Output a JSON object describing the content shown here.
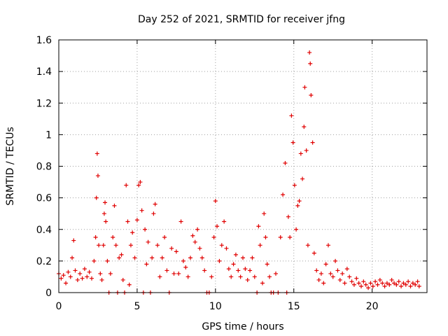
{
  "chart_data": {
    "type": "scatter",
    "title": "Day 252 of 2021, SRMTID for receiver jfng",
    "xlabel": "GPS time / hours",
    "ylabel": "SRMTID / TECUs",
    "xlim": [
      0,
      23.5
    ],
    "ylim": [
      0,
      1.6
    ],
    "xticks": [
      0,
      5,
      10,
      15,
      20
    ],
    "xtick_labels": [
      "0",
      "5",
      "10",
      "15",
      "20"
    ],
    "yticks": [
      0,
      0.2,
      0.4,
      0.6,
      0.8,
      1,
      1.2,
      1.4,
      1.6
    ],
    "ytick_labels": [
      "0",
      "0.2",
      "0.4",
      "0.6",
      "0.8",
      "1",
      "1.2",
      "1.4",
      "1.6"
    ],
    "grid": true,
    "legend": "none",
    "marker": "plus",
    "color": "#e00000",
    "series": [
      {
        "name": "SRMTID",
        "points": [
          [
            0.0,
            0.12
          ],
          [
            0.15,
            0.09
          ],
          [
            0.3,
            0.11
          ],
          [
            0.45,
            0.06
          ],
          [
            0.6,
            0.13
          ],
          [
            0.75,
            0.1
          ],
          [
            0.85,
            0.22
          ],
          [
            0.95,
            0.33
          ],
          [
            1.05,
            0.14
          ],
          [
            1.2,
            0.08
          ],
          [
            1.35,
            0.12
          ],
          [
            1.5,
            0.09
          ],
          [
            1.65,
            0.15
          ],
          [
            1.8,
            0.1
          ],
          [
            1.95,
            0.13
          ],
          [
            2.1,
            0.09
          ],
          [
            2.25,
            0.2
          ],
          [
            2.35,
            0.35
          ],
          [
            2.4,
            0.6
          ],
          [
            2.45,
            0.88
          ],
          [
            2.5,
            0.74
          ],
          [
            2.55,
            0.3
          ],
          [
            2.65,
            0.12
          ],
          [
            2.75,
            0.08
          ],
          [
            2.85,
            0.3
          ],
          [
            2.9,
            0.5
          ],
          [
            2.95,
            0.57
          ],
          [
            3.0,
            0.45
          ],
          [
            3.1,
            0.2
          ],
          [
            3.2,
            0.0
          ],
          [
            3.3,
            0.12
          ],
          [
            3.45,
            0.35
          ],
          [
            3.55,
            0.55
          ],
          [
            3.65,
            0.3
          ],
          [
            3.75,
            0.0
          ],
          [
            3.85,
            0.22
          ],
          [
            4.0,
            0.24
          ],
          [
            4.1,
            0.08
          ],
          [
            4.2,
            0.0
          ],
          [
            4.3,
            0.68
          ],
          [
            4.4,
            0.45
          ],
          [
            4.5,
            0.05
          ],
          [
            4.6,
            0.3
          ],
          [
            4.7,
            0.38
          ],
          [
            4.85,
            0.22
          ],
          [
            5.0,
            0.46
          ],
          [
            5.1,
            0.68
          ],
          [
            5.2,
            0.7
          ],
          [
            5.3,
            0.52
          ],
          [
            5.4,
            0.0
          ],
          [
            5.5,
            0.4
          ],
          [
            5.6,
            0.18
          ],
          [
            5.7,
            0.32
          ],
          [
            5.85,
            0.0
          ],
          [
            5.95,
            0.22
          ],
          [
            6.05,
            0.5
          ],
          [
            6.15,
            0.56
          ],
          [
            6.3,
            0.3
          ],
          [
            6.45,
            0.1
          ],
          [
            6.6,
            0.22
          ],
          [
            6.75,
            0.35
          ],
          [
            6.9,
            0.14
          ],
          [
            7.05,
            0.0
          ],
          [
            7.2,
            0.28
          ],
          [
            7.35,
            0.12
          ],
          [
            7.5,
            0.26
          ],
          [
            7.65,
            0.12
          ],
          [
            7.8,
            0.45
          ],
          [
            7.95,
            0.2
          ],
          [
            8.1,
            0.16
          ],
          [
            8.25,
            0.1
          ],
          [
            8.4,
            0.22
          ],
          [
            8.55,
            0.36
          ],
          [
            8.7,
            0.32
          ],
          [
            8.85,
            0.4
          ],
          [
            9.0,
            0.28
          ],
          [
            9.15,
            0.22
          ],
          [
            9.3,
            0.14
          ],
          [
            9.45,
            0.0
          ],
          [
            9.6,
            0.0
          ],
          [
            9.75,
            0.1
          ],
          [
            9.9,
            0.35
          ],
          [
            10.0,
            0.58
          ],
          [
            10.1,
            0.42
          ],
          [
            10.25,
            0.2
          ],
          [
            10.4,
            0.3
          ],
          [
            10.55,
            0.45
          ],
          [
            10.7,
            0.28
          ],
          [
            10.85,
            0.15
          ],
          [
            11.0,
            0.1
          ],
          [
            11.15,
            0.18
          ],
          [
            11.3,
            0.24
          ],
          [
            11.45,
            0.14
          ],
          [
            11.6,
            0.1
          ],
          [
            11.75,
            0.22
          ],
          [
            11.9,
            0.15
          ],
          [
            12.05,
            0.08
          ],
          [
            12.2,
            0.14
          ],
          [
            12.35,
            0.22
          ],
          [
            12.5,
            0.1
          ],
          [
            12.65,
            0.0
          ],
          [
            12.75,
            0.42
          ],
          [
            12.85,
            0.3
          ],
          [
            13.0,
            0.06
          ],
          [
            13.1,
            0.5
          ],
          [
            13.2,
            0.35
          ],
          [
            13.3,
            0.18
          ],
          [
            13.45,
            0.1
          ],
          [
            13.55,
            0.0
          ],
          [
            13.7,
            0.0
          ],
          [
            13.85,
            0.12
          ],
          [
            14.0,
            0.0
          ],
          [
            14.15,
            0.35
          ],
          [
            14.3,
            0.62
          ],
          [
            14.45,
            0.82
          ],
          [
            14.55,
            0.0
          ],
          [
            14.65,
            0.48
          ],
          [
            14.75,
            0.35
          ],
          [
            14.85,
            1.12
          ],
          [
            14.95,
            0.95
          ],
          [
            15.05,
            0.68
          ],
          [
            15.15,
            0.4
          ],
          [
            15.25,
            0.55
          ],
          [
            15.35,
            0.58
          ],
          [
            15.45,
            0.88
          ],
          [
            15.55,
            0.72
          ],
          [
            15.65,
            1.05
          ],
          [
            15.7,
            1.3
          ],
          [
            15.8,
            0.9
          ],
          [
            15.9,
            0.3
          ],
          [
            16.0,
            1.52
          ],
          [
            16.05,
            1.45
          ],
          [
            16.1,
            1.25
          ],
          [
            16.2,
            0.95
          ],
          [
            16.3,
            0.25
          ],
          [
            16.45,
            0.14
          ],
          [
            16.6,
            0.08
          ],
          [
            16.75,
            0.12
          ],
          [
            16.9,
            0.06
          ],
          [
            17.05,
            0.18
          ],
          [
            17.2,
            0.3
          ],
          [
            17.35,
            0.12
          ],
          [
            17.5,
            0.1
          ],
          [
            17.65,
            0.2
          ],
          [
            17.8,
            0.14
          ],
          [
            17.95,
            0.08
          ],
          [
            18.1,
            0.12
          ],
          [
            18.25,
            0.06
          ],
          [
            18.4,
            0.15
          ],
          [
            18.55,
            0.1
          ],
          [
            18.7,
            0.07
          ],
          [
            18.85,
            0.05
          ],
          [
            19.0,
            0.09
          ],
          [
            19.15,
            0.06
          ],
          [
            19.3,
            0.04
          ],
          [
            19.45,
            0.07
          ],
          [
            19.6,
            0.05
          ],
          [
            19.75,
            0.03
          ],
          [
            19.9,
            0.06
          ],
          [
            20.05,
            0.04
          ],
          [
            20.2,
            0.07
          ],
          [
            20.35,
            0.05
          ],
          [
            20.5,
            0.08
          ],
          [
            20.65,
            0.06
          ],
          [
            20.8,
            0.04
          ],
          [
            20.95,
            0.06
          ],
          [
            21.1,
            0.05
          ],
          [
            21.25,
            0.08
          ],
          [
            21.4,
            0.06
          ],
          [
            21.55,
            0.05
          ],
          [
            21.7,
            0.07
          ],
          [
            21.85,
            0.04
          ],
          [
            22.0,
            0.06
          ],
          [
            22.15,
            0.05
          ],
          [
            22.3,
            0.07
          ],
          [
            22.45,
            0.04
          ],
          [
            22.6,
            0.06
          ],
          [
            22.75,
            0.05
          ],
          [
            22.9,
            0.07
          ],
          [
            23.0,
            0.04
          ]
        ]
      }
    ]
  }
}
